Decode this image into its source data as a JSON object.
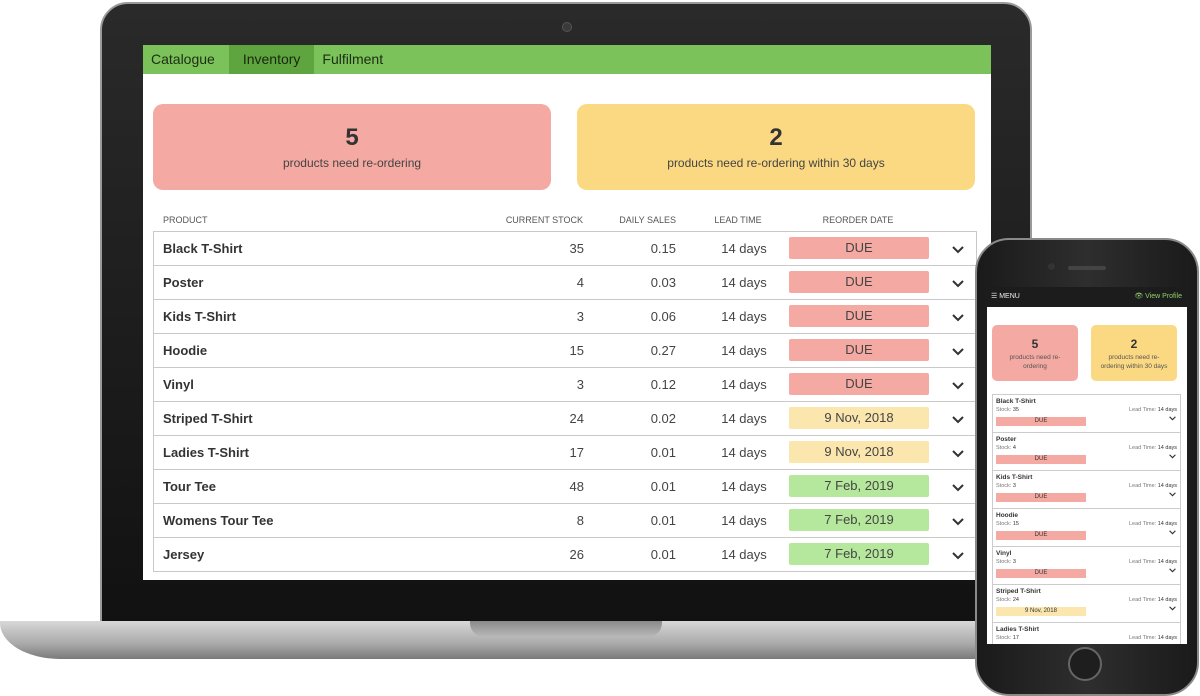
{
  "desktop": {
    "tabs": [
      {
        "label": "Catalogue",
        "active": false
      },
      {
        "label": "Inventory",
        "active": true
      },
      {
        "label": "Fulfilment",
        "active": false
      }
    ],
    "summary": [
      {
        "count": "5",
        "text": "products need re-ordering",
        "color": "#f4a9a2"
      },
      {
        "count": "2",
        "text": "products need re-ordering within 30 days",
        "color": "#fbd982"
      }
    ],
    "columns": {
      "product": "PRODUCT",
      "stock": "CURRENT STOCK",
      "sales": "DAILY SALES",
      "lead": "LEAD TIME",
      "reorder": "REORDER DATE"
    },
    "rows": [
      {
        "name": "Black T-Shirt",
        "stock": "35",
        "sales": "0.15",
        "lead": "14 days",
        "reorder": "DUE",
        "status": "due"
      },
      {
        "name": "Poster",
        "stock": "4",
        "sales": "0.03",
        "lead": "14 days",
        "reorder": "DUE",
        "status": "due"
      },
      {
        "name": "Kids T-Shirt",
        "stock": "3",
        "sales": "0.06",
        "lead": "14 days",
        "reorder": "DUE",
        "status": "due"
      },
      {
        "name": "Hoodie",
        "stock": "15",
        "sales": "0.27",
        "lead": "14 days",
        "reorder": "DUE",
        "status": "due"
      },
      {
        "name": "Vinyl",
        "stock": "3",
        "sales": "0.12",
        "lead": "14 days",
        "reorder": "DUE",
        "status": "due"
      },
      {
        "name": "Striped T-Shirt",
        "stock": "24",
        "sales": "0.02",
        "lead": "14 days",
        "reorder": "9 Nov, 2018",
        "status": "soon"
      },
      {
        "name": "Ladies T-Shirt",
        "stock": "17",
        "sales": "0.01",
        "lead": "14 days",
        "reorder": "9 Nov, 2018",
        "status": "soon"
      },
      {
        "name": "Tour Tee",
        "stock": "48",
        "sales": "0.01",
        "lead": "14 days",
        "reorder": "7 Feb, 2019",
        "status": "ok"
      },
      {
        "name": "Womens Tour Tee",
        "stock": "8",
        "sales": "0.01",
        "lead": "14 days",
        "reorder": "7 Feb, 2019",
        "status": "ok"
      },
      {
        "name": "Jersey",
        "stock": "26",
        "sales": "0.01",
        "lead": "14 days",
        "reorder": "7 Feb, 2019",
        "status": "ok"
      }
    ],
    "chevron_icon": "chevron-down-icon"
  },
  "status_colors": {
    "due": "#f4a9a2",
    "soon": "#fbe6ae",
    "ok": "#b5e89c"
  },
  "mobile": {
    "menu_label": "☰ MENU",
    "view_profile": "👁 View Profile",
    "summary": [
      {
        "count": "5",
        "text": "products need re-ordering"
      },
      {
        "count": "2",
        "text": "products need re-ordering within 30 days"
      }
    ],
    "stock_label": "Stock:",
    "lead_label": "Lead Time:",
    "items": [
      {
        "name": "Black T-Shirt",
        "stock": "35",
        "lead": "14 days",
        "reorder": "DUE",
        "status": "due"
      },
      {
        "name": "Poster",
        "stock": "4",
        "lead": "14 days",
        "reorder": "DUE",
        "status": "due"
      },
      {
        "name": "Kids T-Shirt",
        "stock": "3",
        "lead": "14 days",
        "reorder": "DUE",
        "status": "due"
      },
      {
        "name": "Hoodie",
        "stock": "15",
        "lead": "14 days",
        "reorder": "DUE",
        "status": "due"
      },
      {
        "name": "Vinyl",
        "stock": "3",
        "lead": "14 days",
        "reorder": "DUE",
        "status": "due"
      },
      {
        "name": "Striped T-Shirt",
        "stock": "24",
        "lead": "14 days",
        "reorder": "9 Nov, 2018",
        "status": "soon"
      },
      {
        "name": "Ladies T-Shirt",
        "stock": "17",
        "lead": "14 days",
        "reorder": "",
        "status": "soon"
      }
    ]
  }
}
